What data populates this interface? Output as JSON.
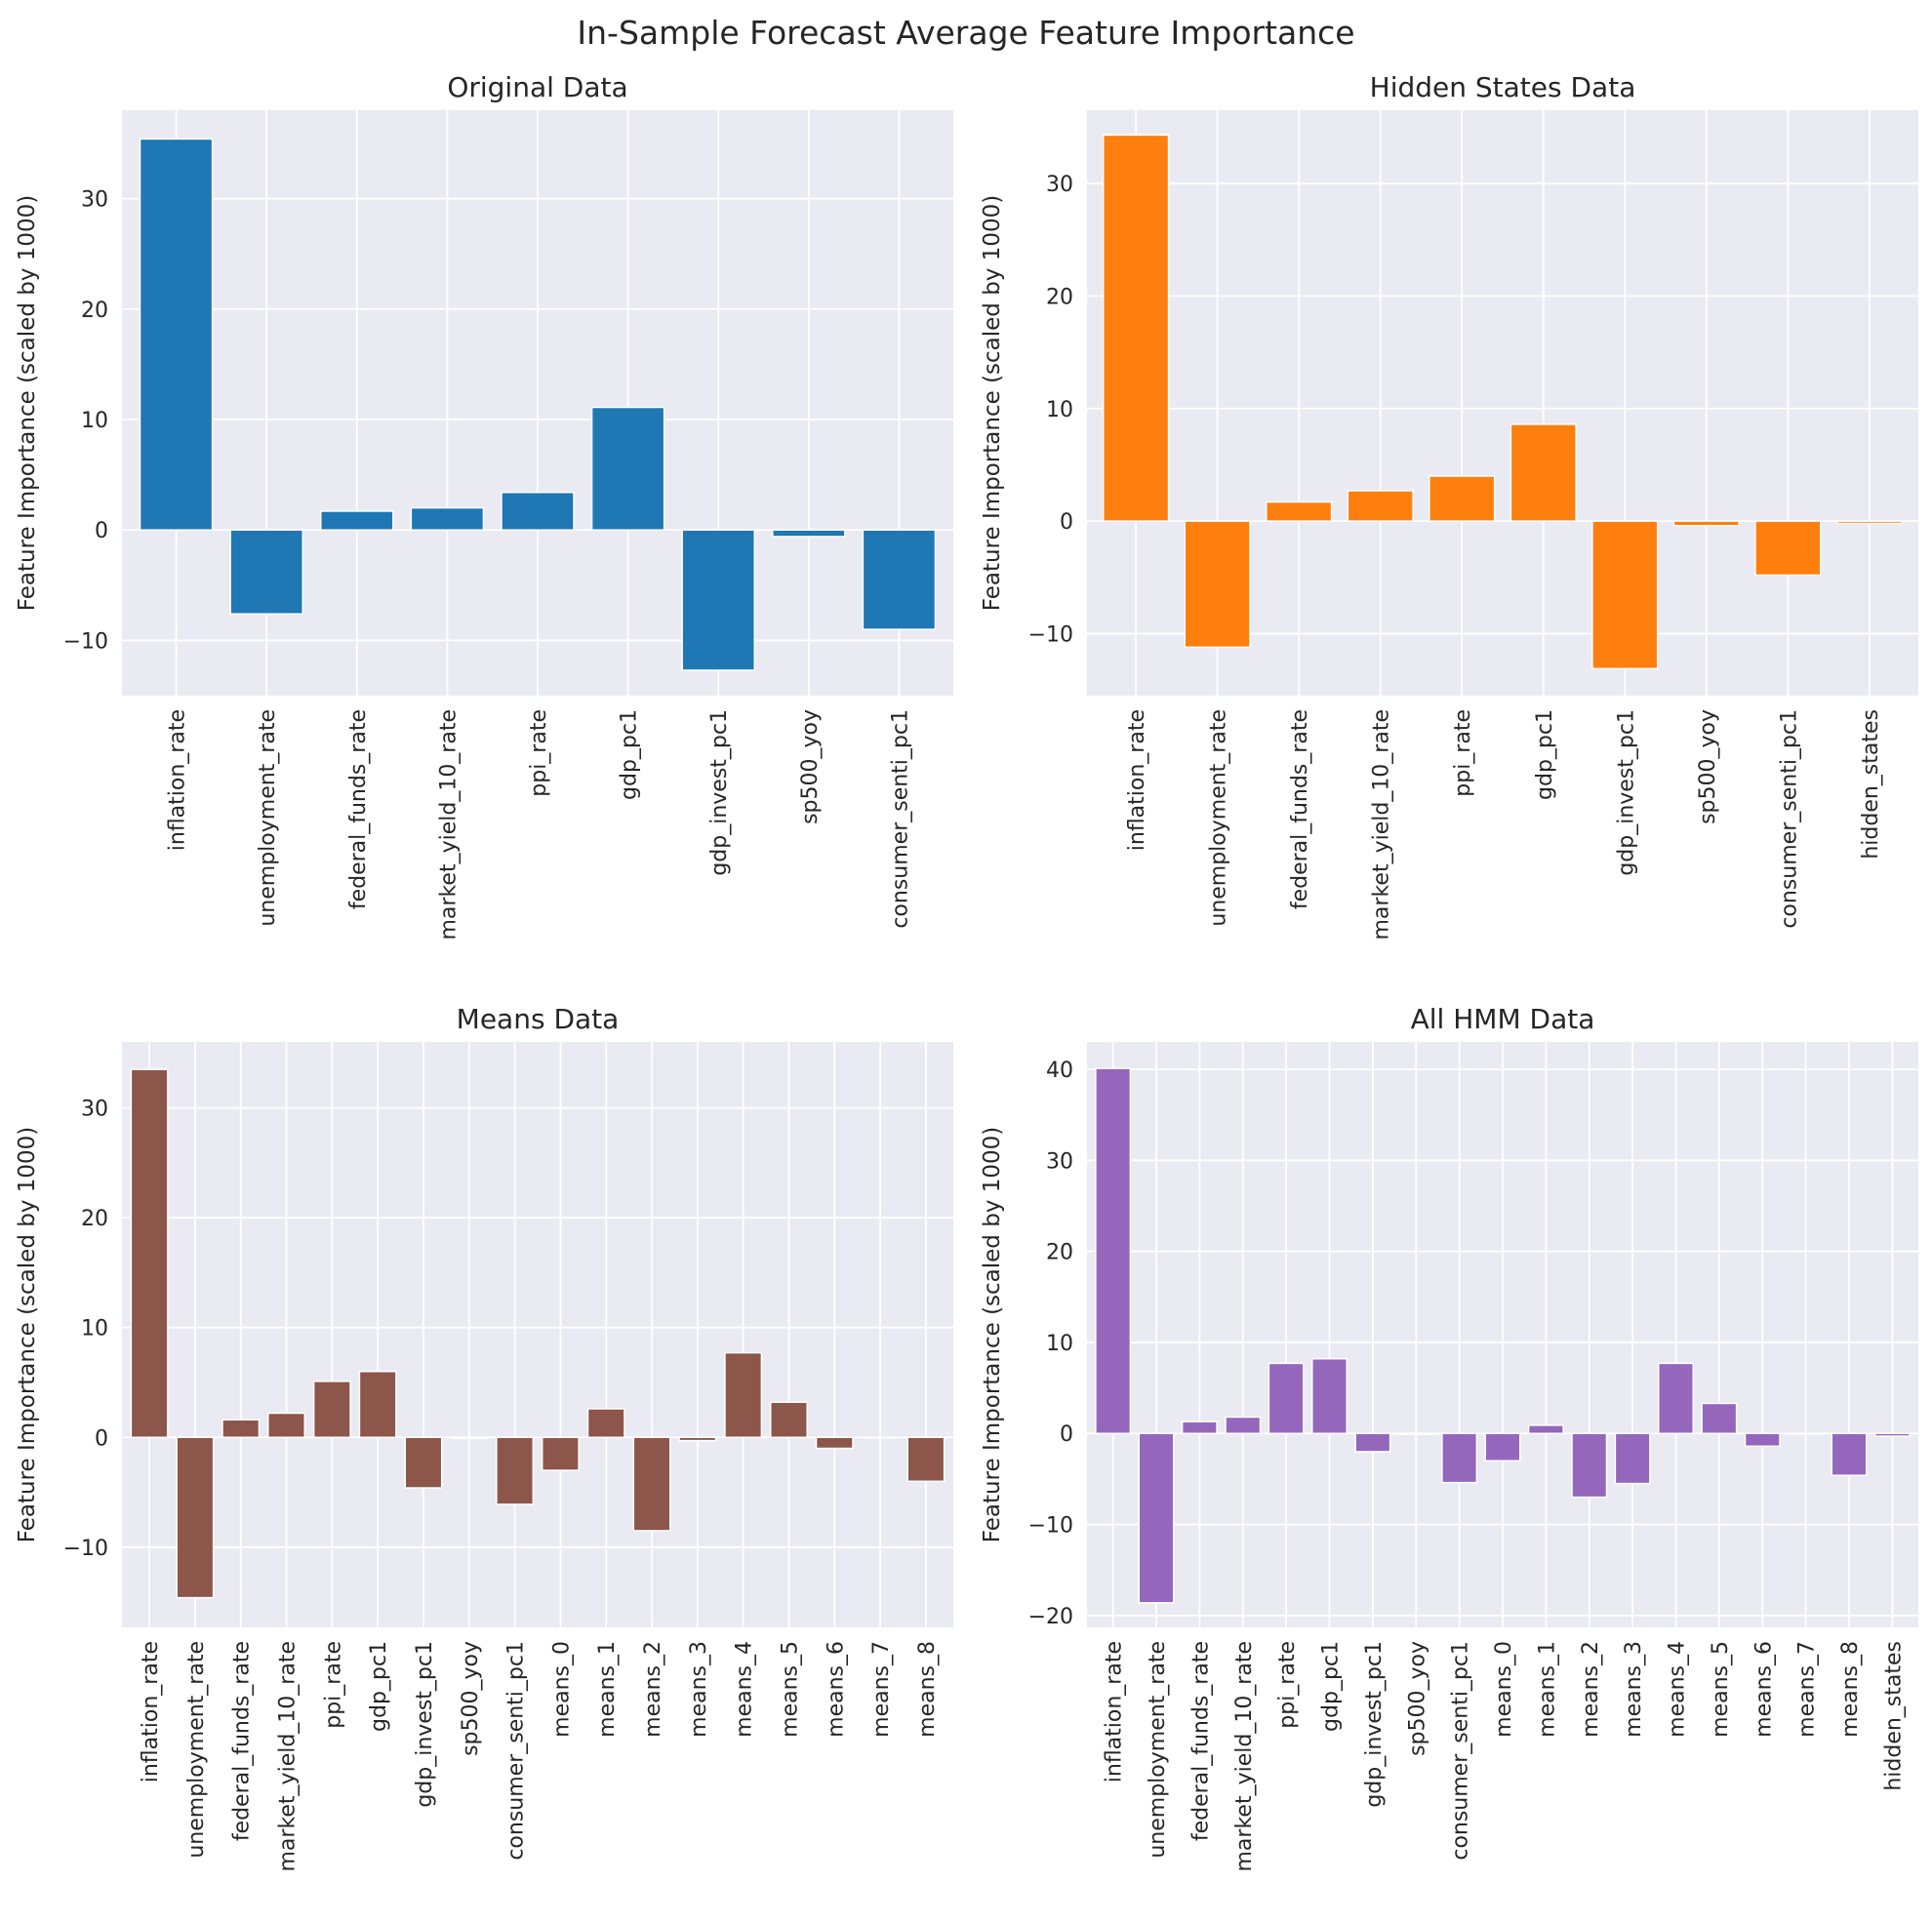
{
  "figure": {
    "title": "In-Sample Forecast Average Feature Importance"
  },
  "chart_data": [
    {
      "type": "bar",
      "title": "Original Data",
      "ylabel": "Feature Importance (scaled by 1000)",
      "color": "#1f77b4",
      "ylim": [
        -15,
        38
      ],
      "yticks": [
        -10,
        0,
        10,
        20,
        30
      ],
      "categories": [
        "inflation_rate",
        "unemployment_rate",
        "federal_funds_rate",
        "market_yield_10_rate",
        "ppi_rate",
        "gdp_pc1",
        "gdp_invest_pc1",
        "sp500_yoy",
        "consumer_senti_pc1"
      ],
      "values": [
        35.4,
        -7.6,
        1.7,
        2.0,
        3.4,
        11.1,
        -12.7,
        -0.6,
        -9.0
      ]
    },
    {
      "type": "bar",
      "title": "Hidden States Data",
      "ylabel": "Feature Importance (scaled by 1000)",
      "color": "#ff7f0e",
      "ylim": [
        -15.5,
        36.5
      ],
      "yticks": [
        -10,
        0,
        10,
        20,
        30
      ],
      "categories": [
        "inflation_rate",
        "unemployment_rate",
        "federal_funds_rate",
        "market_yield_10_rate",
        "ppi_rate",
        "gdp_pc1",
        "gdp_invest_pc1",
        "sp500_yoy",
        "consumer_senti_pc1",
        "hidden_states"
      ],
      "values": [
        34.3,
        -11.2,
        1.7,
        2.7,
        4.0,
        8.6,
        -13.1,
        -0.4,
        -4.8,
        -0.2
      ]
    },
    {
      "type": "bar",
      "title": "Means Data",
      "ylabel": "Feature Importance (scaled by 1000)",
      "color": "#8c564b",
      "ylim": [
        -17.3,
        36
      ],
      "yticks": [
        -10,
        0,
        10,
        20,
        30
      ],
      "categories": [
        "inflation_rate",
        "unemployment_rate",
        "federal_funds_rate",
        "market_yield_10_rate",
        "ppi_rate",
        "gdp_pc1",
        "gdp_invest_pc1",
        "sp500_yoy",
        "consumer_senti_pc1",
        "means_0",
        "means_1",
        "means_2",
        "means_3",
        "means_4",
        "means_5",
        "means_6",
        "means_7",
        "means_8"
      ],
      "values": [
        33.5,
        -14.6,
        1.6,
        2.2,
        5.1,
        6.0,
        -4.6,
        -0.1,
        -6.1,
        -3.0,
        2.6,
        -8.5,
        -0.3,
        7.7,
        3.2,
        -1.0,
        0.0,
        -4.0
      ]
    },
    {
      "type": "bar",
      "title": "All HMM Data",
      "ylabel": "Feature Importance (scaled by 1000)",
      "color": "#9467bd",
      "ylim": [
        -21.3,
        43
      ],
      "yticks": [
        -20,
        -10,
        0,
        10,
        20,
        30,
        40
      ],
      "categories": [
        "inflation_rate",
        "unemployment_rate",
        "federal_funds_rate",
        "market_yield_10_rate",
        "ppi_rate",
        "gdp_pc1",
        "gdp_invest_pc1",
        "sp500_yoy",
        "consumer_senti_pc1",
        "means_0",
        "means_1",
        "means_2",
        "means_3",
        "means_4",
        "means_5",
        "means_6",
        "means_7",
        "means_8",
        "hidden_states"
      ],
      "values": [
        40.1,
        -18.6,
        1.3,
        1.8,
        7.7,
        8.2,
        -2.0,
        -0.1,
        -5.4,
        -3.0,
        0.9,
        -7.0,
        -5.5,
        7.7,
        3.3,
        -1.4,
        0.0,
        -4.6,
        -0.3
      ]
    }
  ]
}
